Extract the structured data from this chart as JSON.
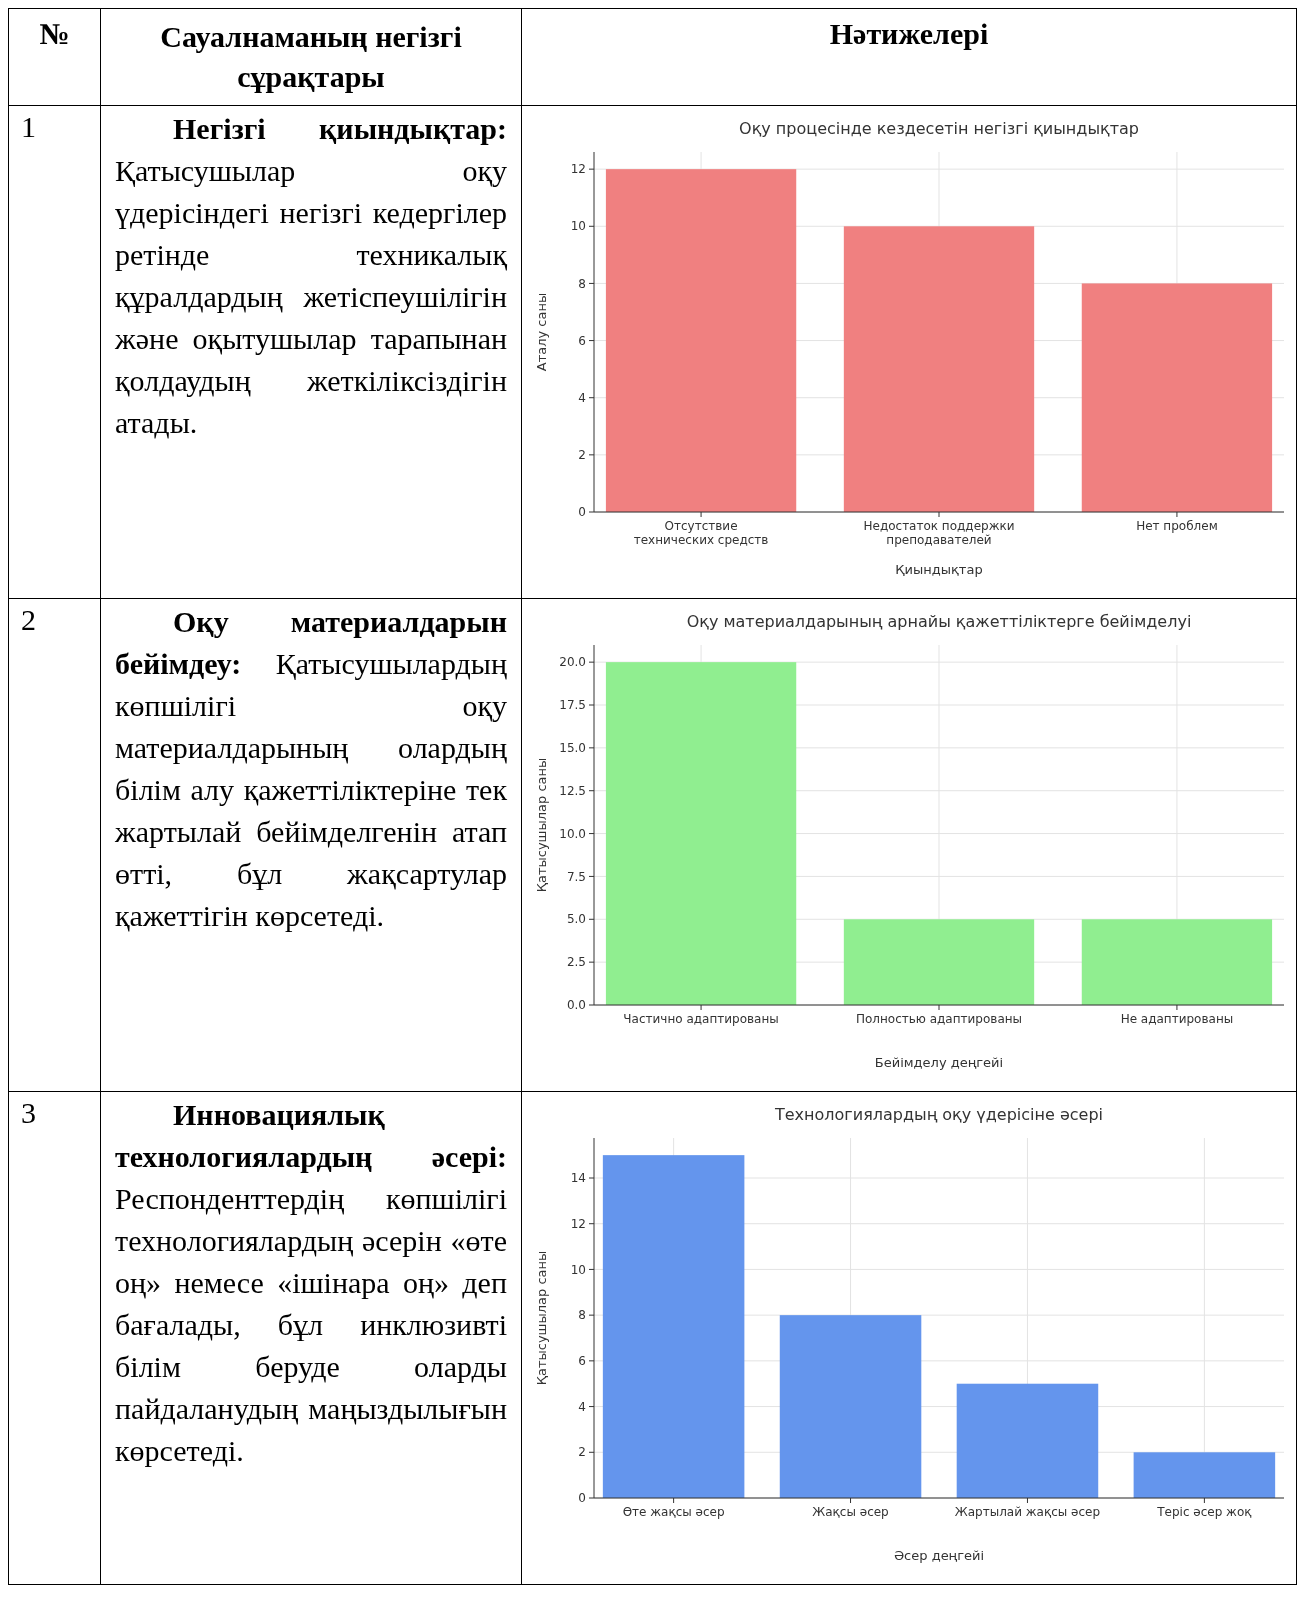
{
  "chart_data": [
    {
      "type": "other",
      "annotations": [
        "№",
        "Сауалнаманың негізгі сұрақтары",
        "Нәтижелері"
      ]
    },
    {
      "type": "other",
      "annotations": [
        "1",
        "Негізгі қиындықтар:",
        "Қатысушылар оқу үдерісіндегі негізгі кедергілер ретінде техникалық құралдардың жетіспеушілігін және оқытушылар тарапынан қолдаудың жеткіліксіздігін атады."
      ]
    },
    {
      "type": "bar",
      "title": "Оқу процесінде кездесетін негізгі қиындықтар",
      "xlabel": "Қиындықтар",
      "ylabel": "Аталу саны",
      "categories": [
        "Отсутствие технических средств",
        "Недостаток поддержки преподавателей",
        "Нет проблем"
      ],
      "values": [
        12,
        10,
        8
      ],
      "color": "#f08080",
      "ylim": [
        0,
        12.6
      ],
      "yticks": [
        0,
        2,
        4,
        6,
        8,
        10,
        12
      ],
      "grid": true
    },
    {
      "type": "other",
      "annotations": [
        "2",
        "Оқу материалдарын бейімдеу:",
        "Қатысушылардың көпшілігі оқу материалдарының олардың білім алу қажеттіліктеріне тек жартылай бейімделгенін атап өтті, бұл жақсартулар қажеттігін көрсетеді."
      ]
    },
    {
      "type": "bar",
      "title": "Оқу материалдарының арнайы қажеттіліктерге бейімделуі",
      "xlabel": "Бейімделу деңгейі",
      "ylabel": "Қатысушылар саны",
      "categories": [
        "Частично адаптированы",
        "Полностью адаптированы",
        "Не адаптированы"
      ],
      "values": [
        20,
        5,
        5
      ],
      "color": "#90ee90",
      "ylim": [
        0,
        21
      ],
      "yticks": [
        {
          "value": 0,
          "label": "0.0"
        },
        {
          "value": 2.5,
          "label": "2.5"
        },
        {
          "value": 5,
          "label": "5.0"
        },
        {
          "value": 7.5,
          "label": "7.5"
        },
        {
          "value": 10,
          "label": "10.0"
        },
        {
          "value": 12.5,
          "label": "12.5"
        },
        {
          "value": 15,
          "label": "15.0"
        },
        {
          "value": 17.5,
          "label": "17.5"
        },
        {
          "value": 20,
          "label": "20.0"
        }
      ],
      "grid": true
    },
    {
      "type": "other",
      "annotations": [
        "3",
        "Инновациялық технологиялардың әсері:",
        "Респонденттердің көпшілігі технологиялардың әсерін «өте оң» немесе «ішінара оң» деп бағалады, бұл инклюзивті білім беруде оларды пайдаланудың маңыздылығын көрсетеді."
      ]
    },
    {
      "type": "bar",
      "title": "Технологиялардың оқу үдерісіне әсері",
      "xlabel": "Әсер деңгейі",
      "ylabel": "Қатысушылар саны",
      "categories": [
        "Өте жақсы әсер",
        "Жақсы әсер",
        "Жартылай жақсы әсер",
        "Теріс әсер жоқ"
      ],
      "values": [
        15,
        8,
        5,
        2
      ],
      "color": "#6495ed",
      "ylim": [
        0,
        15.75
      ],
      "yticks": [
        0,
        2,
        4,
        6,
        8,
        10,
        12,
        14
      ],
      "grid": true
    }
  ]
}
